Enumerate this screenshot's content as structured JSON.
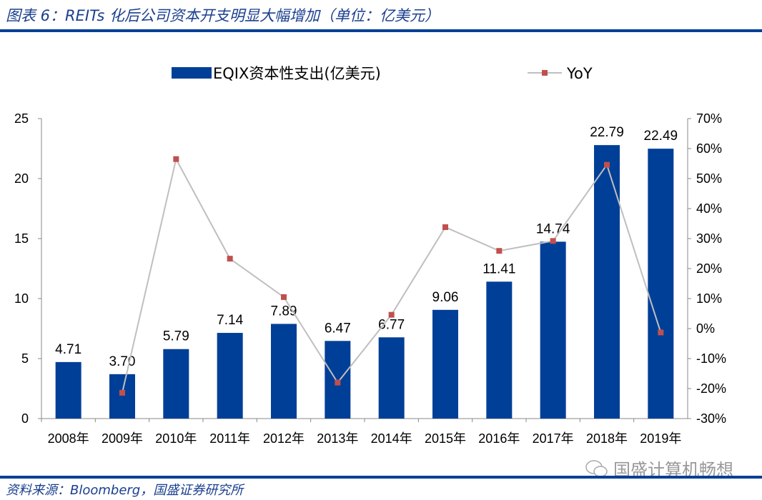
{
  "header": {
    "title": "图表 6：REITs 化后公司资本开支明显大幅增加（单位：亿美元）"
  },
  "footer": {
    "source": "资料来源：Bloomberg，国盛证券研究所",
    "watermark": "国盛计算机畅想",
    "watermark_icon": "wechat-icon"
  },
  "colors": {
    "bar": "#003f97",
    "line": "#bfbfbf",
    "marker": "#c0504d",
    "rule": "#003f97"
  },
  "chart_data": {
    "type": "bar+line",
    "categories": [
      "2008年",
      "2009年",
      "2010年",
      "2011年",
      "2012年",
      "2013年",
      "2014年",
      "2015年",
      "2016年",
      "2017年",
      "2018年",
      "2019年"
    ],
    "series": [
      {
        "name": "EQIX资本性支出(亿美元)",
        "type": "bar",
        "axis": "left",
        "values": [
          4.71,
          3.7,
          5.79,
          7.14,
          7.89,
          6.47,
          6.77,
          9.06,
          11.41,
          14.74,
          22.79,
          22.49
        ],
        "labels": [
          "4.71",
          "3.70",
          "5.79",
          "7.14",
          "7.89",
          "6.47",
          "6.77",
          "9.06",
          "11.41",
          "14.74",
          "22.79",
          "22.49"
        ]
      },
      {
        "name": "YoY",
        "type": "line",
        "axis": "right",
        "values": [
          null,
          -21.4,
          56.5,
          23.3,
          10.5,
          -18.0,
          4.6,
          33.8,
          25.9,
          29.2,
          54.6,
          -1.3
        ]
      }
    ],
    "y_left": {
      "range": [
        0,
        25
      ],
      "ticks": [
        "0",
        "5",
        "10",
        "15",
        "20",
        "25"
      ]
    },
    "y_right": {
      "range": [
        -30,
        70
      ],
      "ticks": [
        "-30%",
        "-20%",
        "-10%",
        "0%",
        "10%",
        "20%",
        "30%",
        "40%",
        "50%",
        "60%",
        "70%"
      ]
    },
    "legend": "top",
    "grid": false
  }
}
